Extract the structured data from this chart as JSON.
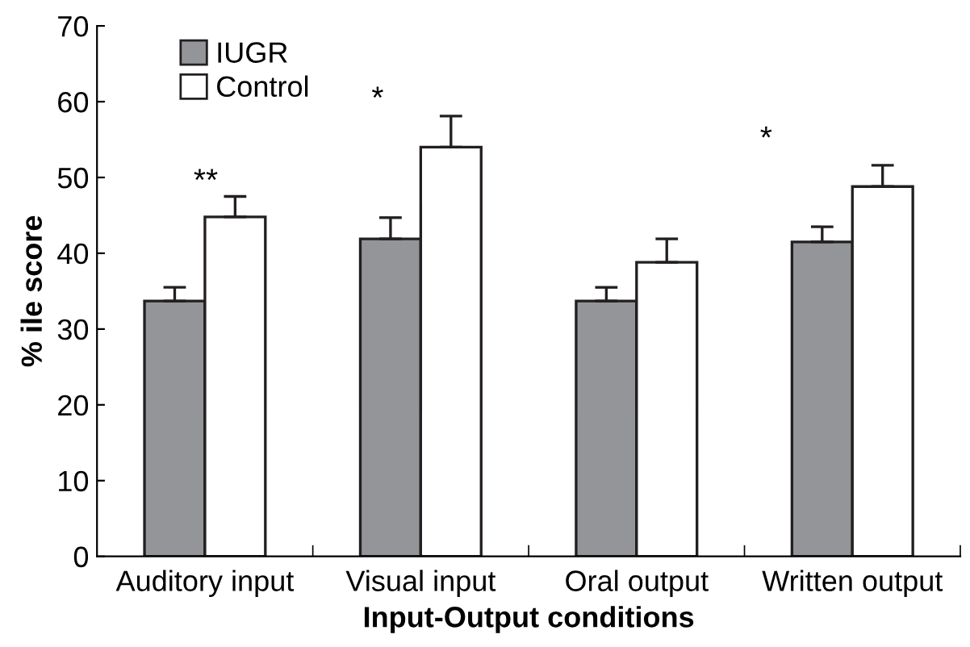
{
  "chart_data": {
    "type": "bar",
    "xlabel": "Input-Output conditions",
    "ylabel": "% ile score",
    "categories": [
      "Auditory input",
      "Visual input",
      "Oral output",
      "Written output"
    ],
    "series": [
      {
        "name": "IUGR",
        "color": "#939598",
        "values": [
          33.7,
          41.9,
          33.7,
          41.5
        ],
        "errors": [
          1.8,
          2.8,
          1.8,
          2.0
        ]
      },
      {
        "name": "Control",
        "color": "#ffffff",
        "values": [
          44.8,
          54.0,
          38.8,
          48.8
        ],
        "errors": [
          2.7,
          4.1,
          3.1,
          2.8
        ]
      }
    ],
    "ylim": [
      0,
      70
    ],
    "yticks": [
      0,
      10,
      20,
      30,
      40,
      50,
      60,
      70
    ],
    "grid": false,
    "legend": "top left",
    "annotations": [
      "**",
      "*",
      "*"
    ]
  }
}
